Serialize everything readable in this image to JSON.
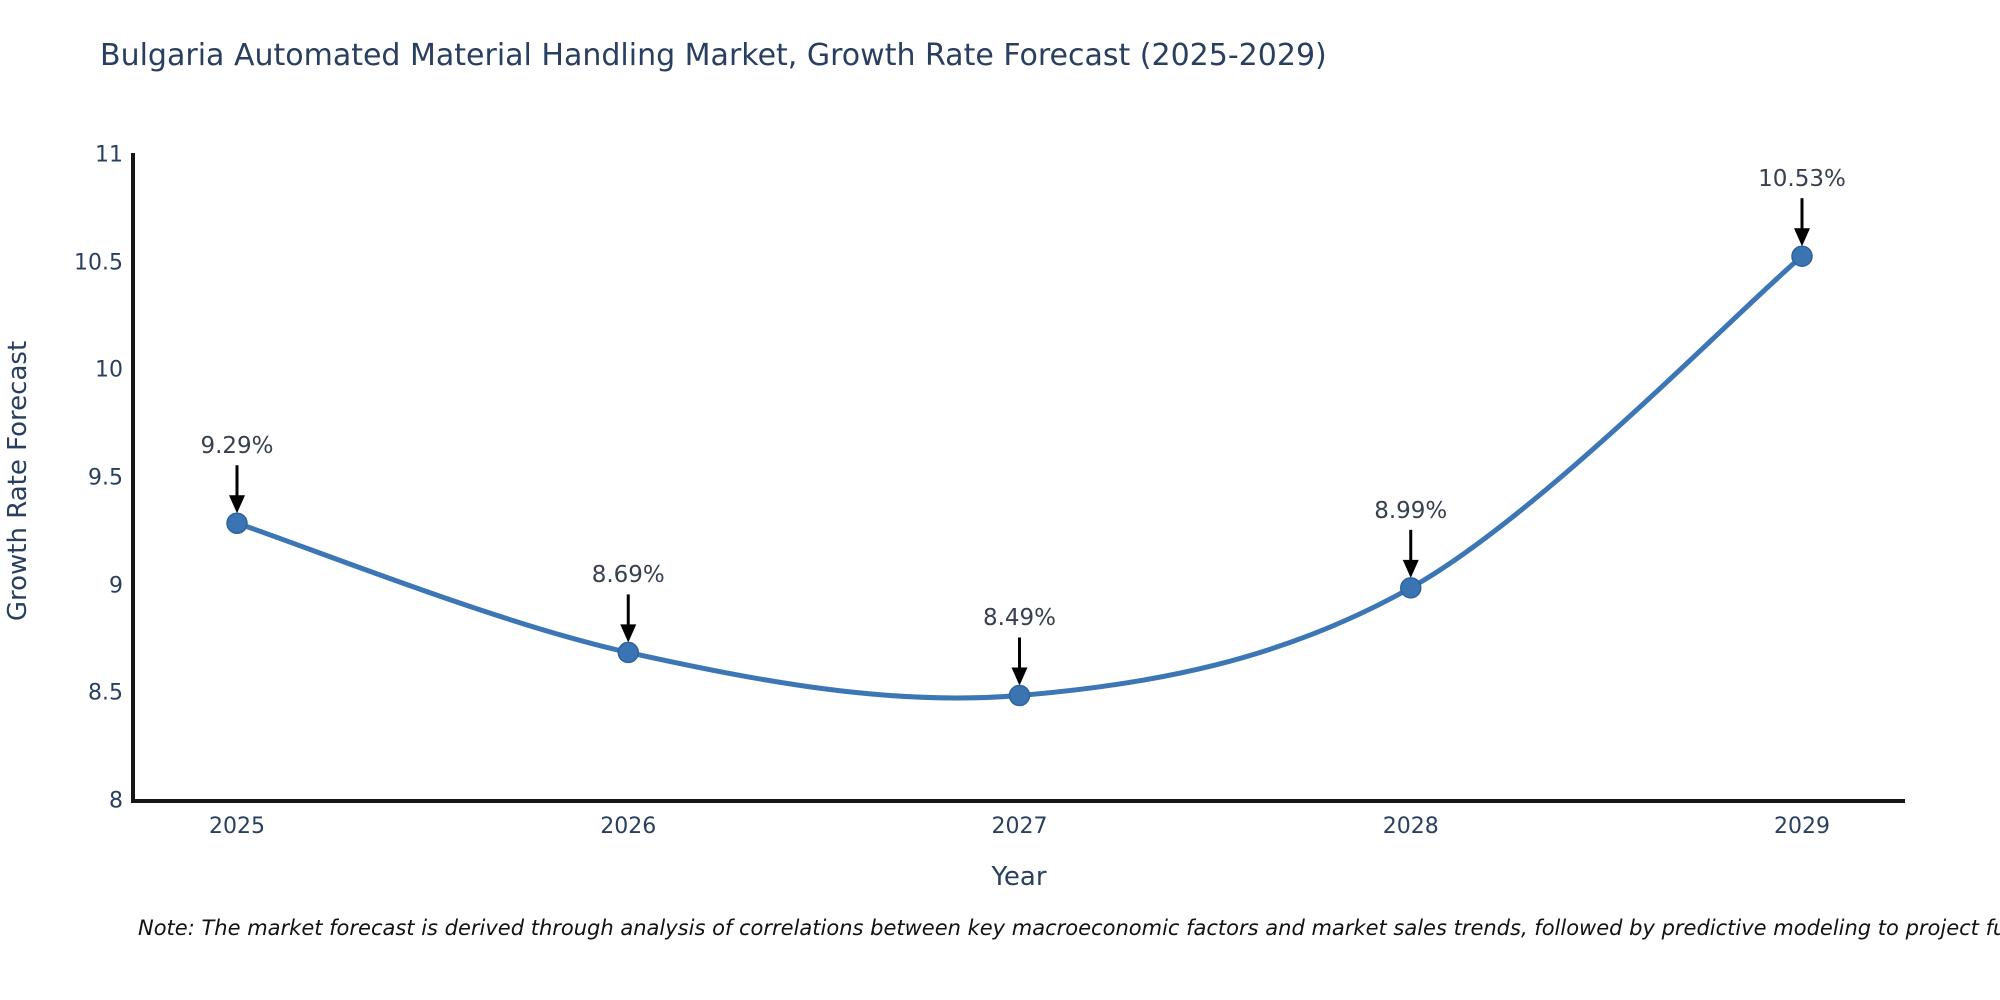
{
  "chart_data": {
    "type": "line",
    "title": "Bulgaria Automated Material Handling Market, Growth Rate Forecast (2025-2029)",
    "xlabel": "Year",
    "ylabel": "Growth Rate Forecast",
    "categories": [
      "2025",
      "2026",
      "2027",
      "2028",
      "2029"
    ],
    "series": [
      {
        "name": "Growth Rate Forecast",
        "values": [
          9.29,
          8.69,
          8.49,
          8.99,
          10.53
        ],
        "point_labels": [
          "9.29%",
          "8.69%",
          "8.49%",
          "8.99%",
          "10.53%"
        ]
      }
    ],
    "ylim": [
      8,
      11
    ],
    "yticks": [
      "8",
      "8.5",
      "9",
      "9.5",
      "10",
      "10.5",
      "11"
    ],
    "ytick_values": [
      8,
      8.5,
      9,
      9.5,
      10,
      10.5,
      11
    ],
    "grid": false,
    "legend": "none",
    "line_shape": "spline",
    "colors": {
      "line": "#3d76b4",
      "marker": "#3a74b2",
      "marker_edge": "#2f639c",
      "axis_line": "#161616",
      "annotation_arrow": "#000000",
      "title_text": "#2a3f5f",
      "tick_text": "#2a3f5f"
    }
  },
  "note": {
    "text": "Note: The market forecast is derived through analysis of correlations between key macroeconomic factors and market sales trends, followed by predictive modeling to project future sal"
  }
}
